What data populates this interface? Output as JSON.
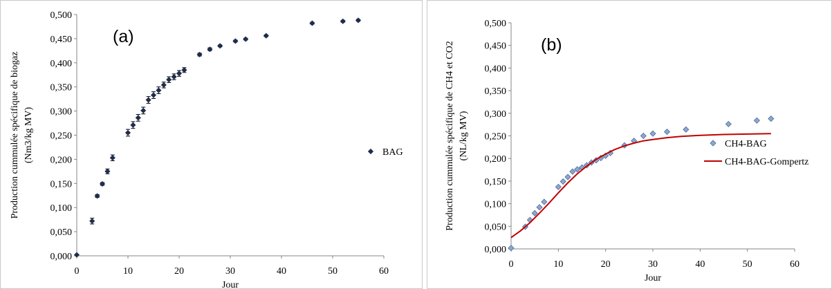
{
  "chart_data": [
    {
      "type": "scatter",
      "panel_label": "(a)",
      "xlabel": "Jour",
      "ylabel_line1": "Production cummulée spécifique de biogaz",
      "ylabel_line2": "(Nm3/kg MV)",
      "xlim": [
        0,
        60
      ],
      "ylim": [
        0,
        0.5
      ],
      "xticks": [
        "0",
        "10",
        "20",
        "30",
        "40",
        "50",
        "60"
      ],
      "yticks": [
        "0,000",
        "0,050",
        "0,100",
        "0,150",
        "0,200",
        "0,250",
        "0,300",
        "0,350",
        "0,400",
        "0,450",
        "0,500"
      ],
      "grid": false,
      "legend": "right",
      "marker_color": "#1f2d4d",
      "series": [
        {
          "name": "BAG",
          "marker": "diamond",
          "error_bars": true,
          "x": [
            0,
            3,
            4,
            5,
            6,
            7,
            10,
            11,
            12,
            13,
            14,
            15,
            16,
            17,
            18,
            19,
            20,
            21,
            24,
            26,
            28,
            31,
            33,
            37,
            46,
            52,
            55
          ],
          "y": [
            0.002,
            0.072,
            0.124,
            0.149,
            0.175,
            0.203,
            0.255,
            0.271,
            0.286,
            0.301,
            0.323,
            0.333,
            0.343,
            0.354,
            0.365,
            0.371,
            0.378,
            0.385,
            0.417,
            0.428,
            0.435,
            0.445,
            0.449,
            0.456,
            0.482,
            0.486,
            0.488
          ],
          "err": [
            0,
            0.006,
            0.003,
            0.003,
            0.005,
            0.006,
            0.007,
            0.007,
            0.007,
            0.007,
            0.007,
            0.007,
            0.007,
            0.006,
            0.006,
            0.006,
            0.006,
            0.005,
            0.003,
            0.003,
            0.002,
            0.002,
            0.002,
            0.002,
            0.002,
            0.002,
            0.002
          ]
        }
      ]
    },
    {
      "type": "scatter",
      "panel_label": "(b)",
      "xlabel": "Jour",
      "ylabel_line1": "Production cummulée spécifique de CH4 et CO2",
      "ylabel_line2": "(NL/kg MV)",
      "xlim": [
        0,
        60
      ],
      "ylim": [
        0,
        0.5
      ],
      "xticks": [
        "0",
        "10",
        "20",
        "30",
        "40",
        "50",
        "60"
      ],
      "yticks": [
        "0,000",
        "0,050",
        "0,100",
        "0,150",
        "0,200",
        "0,250",
        "0,300",
        "0,350",
        "0,400",
        "0,450",
        "0,500"
      ],
      "grid": false,
      "legend": "right",
      "series": [
        {
          "name": "CH4-BAG",
          "marker": "diamond",
          "color": "#8ea7cf",
          "edge_color": "#4a6a9a",
          "x": [
            0,
            3,
            4,
            5,
            6,
            7,
            10,
            11,
            12,
            13,
            14,
            15,
            16,
            17,
            18,
            19,
            20,
            21,
            24,
            26,
            28,
            30,
            33,
            37,
            46,
            52,
            55
          ],
          "y": [
            0.002,
            0.049,
            0.064,
            0.079,
            0.092,
            0.104,
            0.137,
            0.149,
            0.159,
            0.171,
            0.176,
            0.18,
            0.185,
            0.191,
            0.196,
            0.201,
            0.206,
            0.212,
            0.229,
            0.239,
            0.25,
            0.255,
            0.259,
            0.264,
            0.276,
            0.284,
            0.288
          ]
        },
        {
          "name": "CH4-BAG-Gompertz",
          "type": "line",
          "color": "#c00000",
          "x": [
            0,
            2,
            4,
            6,
            8,
            10,
            12,
            14,
            16,
            18,
            20,
            22,
            24,
            26,
            28,
            30,
            33,
            36,
            40,
            45,
            50,
            55
          ],
          "y": [
            0.025,
            0.04,
            0.058,
            0.079,
            0.101,
            0.124,
            0.146,
            0.166,
            0.183,
            0.198,
            0.21,
            0.22,
            0.228,
            0.234,
            0.239,
            0.242,
            0.246,
            0.249,
            0.251,
            0.253,
            0.254,
            0.255
          ]
        }
      ]
    }
  ]
}
